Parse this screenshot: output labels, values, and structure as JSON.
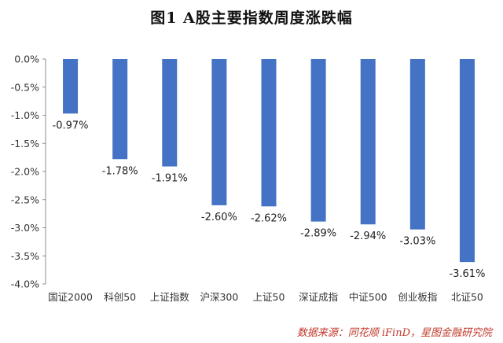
{
  "chart_data": {
    "type": "bar",
    "title": "图1  A股主要指数周度涨跌幅",
    "xlabel": "",
    "ylabel": "",
    "categories": [
      "国证2000",
      "科创50",
      "上证指数",
      "沪深300",
      "上证50",
      "深证成指",
      "中证500",
      "创业板指",
      "北证50"
    ],
    "values": [
      -0.97,
      -1.78,
      -1.91,
      -2.6,
      -2.62,
      -2.89,
      -2.94,
      -3.03,
      -3.61
    ],
    "data_labels": [
      "-0.97%",
      "-1.78%",
      "-1.91%",
      "-2.60%",
      "-2.62%",
      "-2.89%",
      "-2.94%",
      "-3.03%",
      "-3.61%"
    ],
    "ylim": [
      -4.0,
      0.0
    ],
    "yticks": [
      0.0,
      -0.5,
      -1.0,
      -1.5,
      -2.0,
      -2.5,
      -3.0,
      -3.5,
      -4.0
    ],
    "ytick_labels": [
      "0.0%",
      "-0.5%",
      "-1.0%",
      "-1.5%",
      "-2.0%",
      "-2.5%",
      "-3.0%",
      "-3.5%",
      "-4.0%"
    ],
    "grid": false,
    "legend": "none",
    "bar_color": "#4472c4"
  },
  "source": "数据来源：同花顺 iFinD，星图金融研究院"
}
